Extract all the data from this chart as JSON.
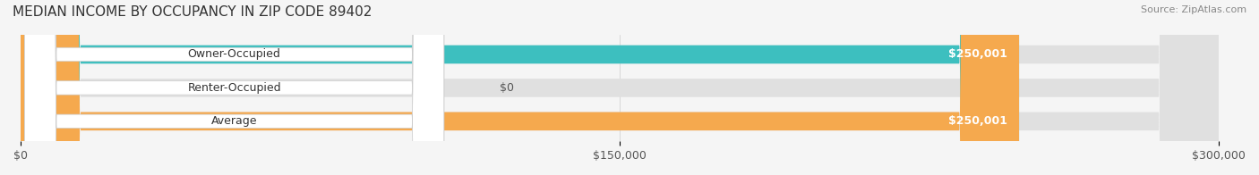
{
  "title": "MEDIAN INCOME BY OCCUPANCY IN ZIP CODE 89402",
  "source": "Source: ZipAtlas.com",
  "categories": [
    "Owner-Occupied",
    "Renter-Occupied",
    "Average"
  ],
  "values": [
    250001,
    0,
    250001
  ],
  "bar_colors": [
    "#3dbfbf",
    "#c9a8d4",
    "#f5a94e"
  ],
  "label_colors": [
    "#3dbfbf",
    "#c9a8d4",
    "#f5a94e"
  ],
  "value_labels": [
    "$250,001",
    "$0",
    "$250,001"
  ],
  "xmax": 300000,
  "xticks": [
    0,
    150000,
    300000
  ],
  "xtick_labels": [
    "$0",
    "$150,000",
    "$300,000"
  ],
  "bar_height": 0.55,
  "background_color": "#f5f5f5",
  "bar_bg_color": "#e8e8e8",
  "title_fontsize": 11,
  "label_fontsize": 9,
  "tick_fontsize": 9
}
